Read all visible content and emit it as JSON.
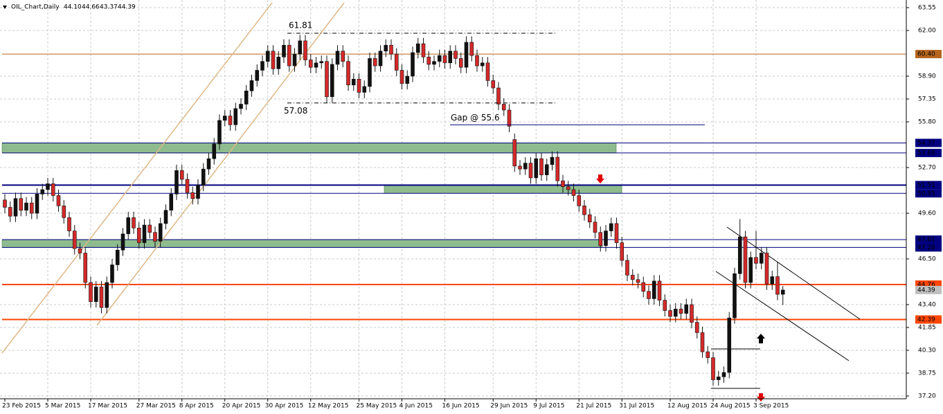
{
  "chart_data": {
    "type": "candlestick",
    "symbol": "OIL_Chart,Daily",
    "ohlc_labels": [
      "44.10",
      "44.66",
      "43.37",
      "44.39"
    ],
    "up_color": "#111111",
    "down_color": "#d42a2a",
    "ylim": [
      37.2,
      63.55
    ],
    "yticks": [
      63.55,
      {
        "value": 62,
        "label": "62.00"
      },
      {
        "value": 58.9,
        "label": "58.90"
      },
      57.35,
      {
        "value": 55.8,
        "label": "55.80"
      },
      {
        "value": 52.7,
        "label": "52.70"
      },
      {
        "value": 49.6,
        "label": "49.60"
      },
      {
        "value": 46.5,
        "label": "46.50"
      },
      {
        "value": 43.4,
        "label": "43.40"
      },
      41.85,
      {
        "value": 40.3,
        "label": "40.30"
      },
      38.75,
      {
        "value": 37.2,
        "label": "37.20"
      }
    ],
    "grid": true,
    "categories": [
      "23 Feb 2015",
      null,
      null,
      null,
      null,
      null,
      null,
      null,
      "5 Mar 2015",
      null,
      null,
      null,
      null,
      null,
      null,
      null,
      "17 Mar 2015",
      null,
      null,
      null,
      null,
      null,
      null,
      null,
      null,
      "27 Mar 2015",
      null,
      null,
      null,
      null,
      null,
      null,
      null,
      "8 Apr 2015",
      null,
      null,
      null,
      null,
      null,
      null,
      null,
      "20 Apr 2015",
      null,
      null,
      null,
      null,
      null,
      null,
      null,
      "30 Apr 2015",
      null,
      null,
      null,
      null,
      null,
      null,
      null,
      "12 May 2015",
      null,
      null,
      null,
      null,
      null,
      null,
      null,
      null,
      "25 May 2015",
      null,
      null,
      null,
      null,
      null,
      null,
      null,
      "4 Jun 2015",
      null,
      null,
      null,
      null,
      null,
      null,
      null,
      "16 Jun 2015",
      null,
      null,
      null,
      null,
      null,
      null,
      null,
      null,
      "29 Jun 2015",
      null,
      null,
      null,
      null,
      null,
      null,
      null,
      "9 Jul 2015",
      null,
      null,
      null,
      null,
      null,
      null,
      null,
      "21 Jul 2015",
      null,
      null,
      null,
      null,
      null,
      null,
      null,
      "31 Jul 2015",
      null,
      null,
      null,
      null,
      null,
      null,
      null,
      null,
      "12 Aug 2015",
      null,
      null,
      null,
      null,
      null,
      null,
      null,
      "24 Aug 2015",
      null,
      null,
      null,
      null,
      null,
      null,
      null,
      "3 Sep 2015",
      null,
      null,
      null,
      null,
      null
    ],
    "open": [
      50.5,
      50.0,
      49.4,
      50.6,
      49.8,
      50.3,
      49.6,
      50.9,
      51.2,
      51.6,
      50.8,
      50.1,
      49.3,
      48.4,
      47.2,
      46.9,
      44.9,
      43.6,
      44.6,
      43.2,
      44.9,
      46.1,
      47.1,
      48.2,
      49.3,
      48.6,
      47.6,
      48.8,
      48.3,
      47.7,
      48.9,
      49.8,
      50.9,
      52.5,
      51.9,
      51.0,
      50.6,
      51.5,
      52.6,
      53.3,
      54.3,
      55.9,
      56.2,
      55.6,
      56.7,
      57.0,
      57.9,
      58.6,
      59.3,
      59.9,
      60.6,
      59.4,
      60.2,
      61.0,
      59.6,
      60.4,
      61.3,
      60.0,
      59.5,
      59.8,
      59.9,
      57.5,
      59.7,
      60.6,
      59.9,
      58.3,
      58.7,
      57.8,
      58.2,
      60.1,
      59.6,
      60.6,
      61.0,
      60.4,
      59.3,
      58.4,
      58.9,
      60.5,
      61.1,
      60.2,
      59.7,
      59.9,
      60.3,
      59.8,
      60.6,
      60.1,
      59.5,
      61.2,
      60.3,
      59.6,
      59.8,
      58.6,
      58.1,
      57.0,
      56.6,
      54.6,
      52.8,
      52.6,
      53.0,
      52.0,
      53.3,
      52.2,
      52.9,
      53.4,
      51.8,
      51.4,
      51.2,
      50.8,
      50.1,
      49.5,
      49.0,
      48.3,
      47.4,
      48.4,
      48.9,
      47.6,
      46.4,
      45.4,
      45.1,
      44.9,
      44.3,
      43.8,
      45.0,
      43.7,
      43.0,
      42.6,
      43.1,
      42.8,
      43.4,
      42.2,
      41.5,
      40.2,
      39.8,
      38.3,
      38.5,
      38.8,
      42.5,
      45.5,
      48.0,
      44.9,
      46.6,
      46.2,
      46.9,
      44.8,
      45.3,
      44.1
    ],
    "high": [
      50.9,
      50.4,
      51.0,
      51.0,
      50.7,
      50.7,
      51.3,
      51.6,
      52.0,
      52.0,
      51.2,
      50.5,
      49.7,
      48.8,
      47.6,
      47.3,
      45.3,
      45.0,
      45.0,
      45.3,
      46.5,
      47.5,
      48.6,
      49.7,
      49.7,
      49.0,
      49.2,
      49.2,
      48.7,
      49.3,
      50.2,
      51.3,
      52.9,
      52.9,
      52.3,
      51.4,
      51.9,
      53.0,
      53.7,
      54.7,
      56.3,
      56.6,
      56.6,
      57.1,
      57.4,
      58.3,
      59.0,
      59.7,
      60.3,
      61.0,
      61.0,
      60.6,
      61.4,
      61.4,
      60.8,
      61.7,
      61.7,
      60.4,
      60.2,
      60.3,
      60.3,
      60.1,
      61.0,
      61.0,
      60.3,
      59.1,
      59.1,
      58.6,
      60.5,
      60.5,
      61.0,
      61.4,
      61.4,
      60.8,
      59.7,
      59.3,
      60.9,
      61.5,
      61.5,
      60.6,
      60.3,
      60.7,
      60.7,
      61.0,
      61.0,
      60.5,
      61.6,
      61.6,
      60.7,
      60.2,
      60.2,
      59.0,
      58.5,
      57.4,
      57.0,
      55.0,
      53.2,
      53.4,
      53.4,
      53.7,
      53.7,
      53.3,
      53.8,
      53.8,
      52.2,
      51.8,
      51.6,
      51.2,
      50.5,
      49.9,
      49.4,
      48.7,
      48.8,
      49.3,
      49.3,
      48.0,
      46.8,
      45.8,
      45.5,
      45.3,
      44.7,
      45.4,
      45.4,
      44.1,
      43.4,
      43.5,
      43.5,
      43.8,
      43.8,
      42.6,
      41.9,
      40.6,
      40.2,
      38.9,
      39.2,
      42.9,
      45.9,
      49.2,
      48.4,
      47.0,
      48.4,
      47.3,
      47.3,
      45.7,
      46.3,
      44.66
    ],
    "low": [
      49.6,
      49.0,
      49.0,
      49.4,
      49.4,
      49.2,
      49.2,
      50.5,
      50.8,
      50.4,
      49.7,
      48.9,
      48.0,
      46.8,
      46.5,
      44.5,
      43.2,
      43.2,
      42.8,
      42.8,
      44.5,
      45.7,
      46.7,
      47.8,
      48.2,
      47.2,
      47.2,
      47.9,
      47.3,
      47.3,
      48.5,
      49.4,
      50.5,
      51.5,
      50.6,
      50.2,
      50.2,
      51.1,
      52.2,
      52.9,
      53.9,
      55.5,
      55.2,
      55.2,
      56.3,
      56.6,
      57.5,
      58.2,
      58.9,
      59.5,
      59.0,
      59.0,
      59.8,
      59.2,
      59.2,
      60.0,
      59.6,
      59.1,
      59.1,
      59.4,
      57.1,
      57.1,
      59.3,
      59.5,
      57.9,
      57.9,
      57.4,
      57.4,
      57.8,
      59.2,
      59.2,
      60.2,
      60.0,
      58.9,
      58.0,
      58.0,
      58.5,
      60.1,
      59.8,
      59.3,
      59.3,
      59.5,
      59.4,
      59.4,
      59.7,
      59.1,
      59.1,
      59.9,
      59.2,
      59.2,
      58.2,
      57.7,
      56.6,
      56.2,
      55.1,
      52.4,
      52.2,
      52.2,
      51.6,
      51.6,
      51.8,
      51.8,
      52.5,
      51.4,
      51.0,
      50.8,
      50.4,
      49.7,
      49.1,
      48.6,
      47.9,
      47.0,
      47.0,
      48.0,
      47.2,
      46.0,
      45.0,
      44.7,
      44.5,
      43.9,
      43.4,
      43.4,
      43.3,
      42.6,
      42.2,
      42.2,
      42.4,
      42.4,
      41.8,
      41.1,
      39.8,
      39.4,
      37.9,
      37.9,
      38.1,
      38.4,
      42.1,
      45.1,
      44.5,
      44.5,
      45.8,
      45.8,
      44.4,
      44.4,
      43.7,
      43.37
    ],
    "close": [
      50.0,
      49.4,
      50.6,
      49.8,
      50.3,
      49.6,
      50.9,
      51.2,
      51.6,
      50.8,
      50.1,
      49.3,
      48.4,
      47.2,
      46.9,
      44.9,
      43.6,
      44.6,
      43.2,
      44.9,
      46.1,
      47.1,
      48.2,
      49.3,
      48.6,
      47.6,
      48.8,
      48.3,
      47.7,
      48.9,
      49.8,
      50.9,
      52.5,
      51.9,
      51.0,
      50.6,
      51.5,
      52.6,
      53.3,
      54.3,
      55.9,
      56.2,
      55.6,
      56.7,
      57.0,
      57.9,
      58.6,
      59.3,
      59.9,
      60.6,
      59.4,
      60.2,
      61.0,
      59.6,
      60.4,
      61.3,
      60.0,
      59.5,
      59.8,
      59.9,
      57.5,
      59.7,
      60.6,
      59.9,
      58.3,
      58.7,
      57.8,
      58.2,
      60.1,
      59.6,
      60.6,
      61.0,
      60.4,
      59.3,
      58.4,
      58.9,
      60.5,
      61.1,
      60.2,
      59.7,
      59.9,
      60.3,
      59.8,
      60.6,
      60.1,
      59.5,
      61.2,
      60.3,
      59.6,
      59.8,
      58.6,
      58.1,
      57.0,
      56.6,
      55.5,
      52.8,
      52.6,
      53.0,
      52.0,
      53.3,
      52.2,
      52.9,
      53.4,
      51.8,
      51.4,
      51.2,
      50.8,
      50.1,
      49.5,
      49.0,
      48.3,
      47.4,
      48.4,
      48.9,
      47.6,
      46.4,
      45.4,
      45.1,
      44.9,
      44.3,
      43.8,
      45.0,
      43.7,
      43.0,
      42.6,
      43.1,
      42.8,
      43.4,
      42.2,
      41.5,
      40.2,
      39.8,
      38.3,
      38.5,
      38.8,
      42.5,
      45.5,
      48.0,
      44.9,
      46.6,
      46.2,
      46.9,
      44.8,
      45.3,
      44.1,
      44.39
    ],
    "levels": [
      {
        "value": 60.4,
        "label": "60.40",
        "color": "#b5651d"
      },
      {
        "value": 54.37,
        "color": "#000080"
      },
      {
        "value": 53.69,
        "color": "#000080"
      },
      {
        "value": 51.51,
        "color": "#000080"
      },
      {
        "value": 50.95,
        "color": "#000080"
      },
      {
        "value": 47.81,
        "color": "#000080"
      },
      {
        "value": 47.28,
        "color": "#000080"
      },
      {
        "value": 44.76,
        "color": "#ff4500"
      },
      {
        "value": 42.39,
        "color": "#ff4500"
      }
    ],
    "fib_lines": [
      {
        "value": 61.81
      },
      {
        "value": 57.08
      }
    ],
    "gap_line": {
      "value": 55.6,
      "label": "Gap @ 55.6"
    }
  }
}
